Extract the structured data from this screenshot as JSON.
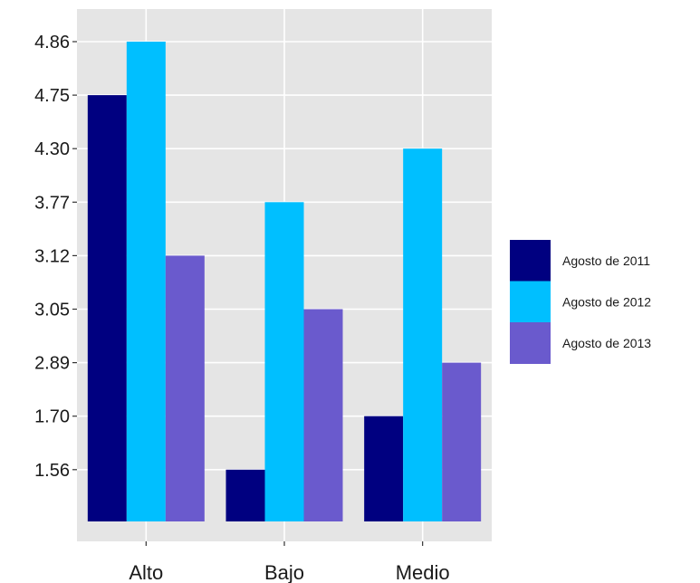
{
  "chart_data": {
    "type": "bar",
    "categories": [
      "Alto",
      "Bajo",
      "Medio"
    ],
    "y_tick_labels": [
      "1.56",
      "1.70",
      "2.89",
      "3.05",
      "3.12",
      "3.77",
      "4.30",
      "4.75",
      "4.86"
    ],
    "series": [
      {
        "name": "Agosto de 2011",
        "color": "#000080",
        "values": [
          "4.75",
          "1.56",
          "1.70"
        ]
      },
      {
        "name": "Agosto de 2012",
        "color": "#00BFFF",
        "values": [
          "4.86",
          "3.77",
          "4.30"
        ]
      },
      {
        "name": "Agosto de 2013",
        "color": "#6A5ACD",
        "values": [
          "3.12",
          "3.05",
          "2.89"
        ]
      }
    ],
    "y_axis_type": "categorical",
    "grid": true,
    "legend_position": "right",
    "panel_color": "#E5E5E5",
    "grid_color": "#FFFFFF"
  }
}
